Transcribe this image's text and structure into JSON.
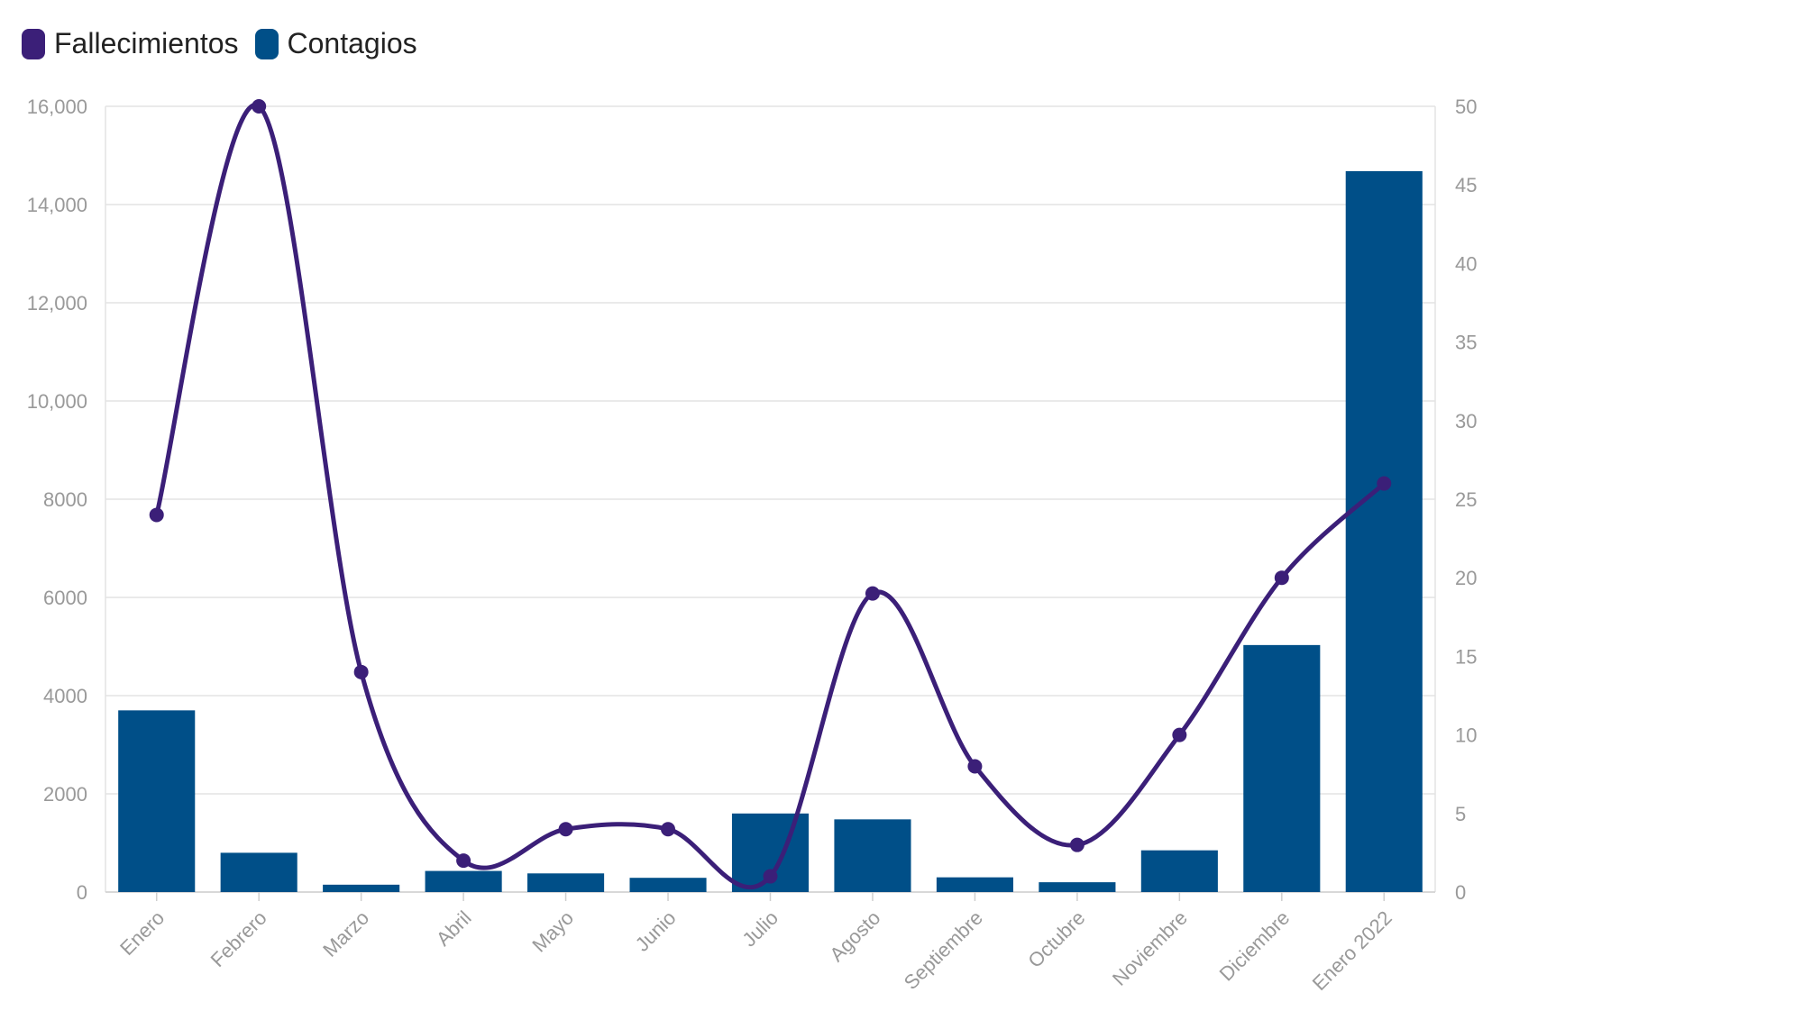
{
  "legend": {
    "deaths_label": "Fallecimientos",
    "cases_label": "Contagios"
  },
  "colors": {
    "deaths": "#3b1f78",
    "cases": "#004f88",
    "grid": "#e3e3e3",
    "tick_text": "#999999"
  },
  "chart_data": {
    "type": "bar",
    "categories": [
      "Enero",
      "Febrero",
      "Marzo",
      "Abril",
      "Mayo",
      "Junio",
      "Julio",
      "Agosto",
      "Septiembre",
      "Octubre",
      "Noviembre",
      "Diciembre",
      "Enero 2022"
    ],
    "series": [
      {
        "name": "Contagios",
        "type": "bar",
        "axis": "left",
        "values": [
          3700,
          800,
          150,
          430,
          380,
          290,
          1600,
          1480,
          300,
          200,
          850,
          5030,
          14680
        ]
      },
      {
        "name": "Fallecimientos",
        "type": "line",
        "axis": "right",
        "values": [
          24,
          50,
          14,
          2,
          4,
          4,
          1,
          19,
          8,
          3,
          10,
          20,
          26
        ]
      }
    ],
    "left_axis": {
      "range": [
        0,
        16000
      ],
      "ticks": [
        0,
        2000,
        4000,
        6000,
        8000,
        10000,
        12000,
        14000,
        16000
      ],
      "tick_labels": [
        "0",
        "2000",
        "4000",
        "6000",
        "8000",
        "10,000",
        "12,000",
        "14,000",
        "16,000"
      ]
    },
    "right_axis": {
      "range": [
        0,
        50
      ],
      "ticks": [
        0,
        5,
        10,
        15,
        20,
        25,
        30,
        35,
        40,
        45,
        50
      ],
      "tick_labels": [
        "0",
        "5",
        "10",
        "15",
        "20",
        "25",
        "30",
        "35",
        "40",
        "45",
        "50"
      ]
    },
    "grid": true,
    "legend_position": "top-left",
    "xlabel": "",
    "ylabel": ""
  }
}
